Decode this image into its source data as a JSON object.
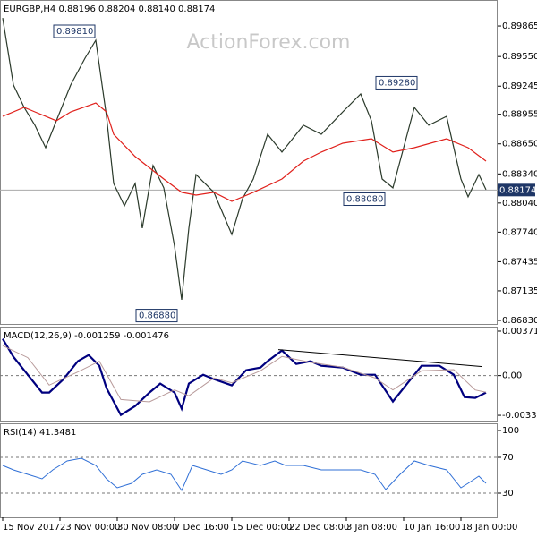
{
  "header": "EURGBP,H4  0.88196 0.88204 0.88140 0.88174",
  "watermark": "ActionForex.com",
  "chart_data": [
    {
      "type": "line",
      "title": "EURGBP,H4  0.88196 0.88204 0.88140 0.88174",
      "xlim": [
        0,
        138
      ],
      "ylim": [
        0.86793,
        0.90133
      ],
      "yticks": [
        0.89865,
        {
          "value": 0.8955,
          "label": "0.89550"
        },
        0.89245,
        0.88955,
        {
          "value": 0.8865,
          "label": "0.88650"
        },
        {
          "value": 0.8834,
          "label": "0.88340"
        },
        {
          "value": 0.8804,
          "label": "0.88040"
        },
        {
          "value": 0.8774,
          "label": "0.87740"
        },
        0.87435,
        0.87135,
        {
          "value": 0.8683,
          "label": "0.86830"
        }
      ],
      "series": [
        {
          "name": "EURGBP",
          "color": "#2b3a2b",
          "x": [
            0,
            3,
            6,
            9,
            12,
            15,
            19,
            23,
            26,
            29,
            31,
            34,
            37,
            39,
            42,
            45,
            48,
            50,
            52,
            54,
            59,
            64,
            67,
            70,
            74,
            78,
            84,
            89,
            95,
            100,
            103,
            106,
            109,
            112,
            115,
            119,
            124,
            128,
            130,
            133,
            135
          ],
          "values": [
            0.89948,
            0.89257,
            0.89026,
            0.88842,
            0.88611,
            0.88888,
            0.89257,
            0.89533,
            0.89718,
            0.88934,
            0.88242,
            0.88011,
            0.88242,
            0.87781,
            0.88426,
            0.88196,
            0.87596,
            0.87043,
            0.87781,
            0.88334,
            0.8815,
            0.87716,
            0.88085,
            0.88288,
            0.88749,
            0.88565,
            0.88842,
            0.88749,
            0.8898,
            0.89164,
            0.88888,
            0.88288,
            0.88196,
            0.88611,
            0.89026,
            0.88842,
            0.88934,
            0.88288,
            0.88104,
            0.88334,
            0.88178
          ]
        },
        {
          "name": "MA",
          "color": "#e0201b",
          "x": [
            0,
            6,
            9,
            15,
            19,
            26,
            29,
            31,
            37,
            45,
            50,
            54,
            59,
            64,
            70,
            78,
            84,
            89,
            95,
            103,
            109,
            115,
            124,
            130,
            135
          ],
          "values": [
            0.88934,
            0.89026,
            0.8898,
            0.88888,
            0.8898,
            0.89072,
            0.8898,
            0.88749,
            0.88519,
            0.88288,
            0.8815,
            0.88122,
            0.8815,
            0.88057,
            0.8815,
            0.88288,
            0.88472,
            0.88565,
            0.88657,
            0.88703,
            0.88565,
            0.88611,
            0.88703,
            0.88611,
            0.88472
          ]
        }
      ],
      "annotations": [
        {
          "value": 0.8981,
          "label": "0.89810",
          "x": 26
        },
        {
          "value": 0.8688,
          "label": "0.86880",
          "x": 49
        },
        {
          "value": 0.8928,
          "label": "0.89280",
          "x": 116
        },
        {
          "value": 0.8808,
          "label": "0.88080",
          "x": 107
        }
      ],
      "last_price": {
        "value": 0.88174,
        "label": "0.88174"
      }
    },
    {
      "type": "line",
      "title": "MACD(12,26,9) -0.001259 -0.001476",
      "xlim": [
        0,
        138
      ],
      "ylim": [
        -0.00377,
        0.00409
      ],
      "yticks": [
        0.003717,
        {
          "value": 0,
          "label": "0.00"
        },
        -0.003325
      ],
      "levels": [
        0
      ],
      "series": [
        {
          "name": "MACD",
          "color": "#00007f",
          "width": 2.2,
          "x": [
            0,
            3,
            7,
            11,
            13,
            17,
            21,
            24,
            27,
            29,
            33,
            37,
            41,
            44,
            48,
            50,
            52,
            56,
            59,
            64,
            68,
            72,
            74,
            78,
            82,
            86,
            89,
            95,
            100,
            104,
            109,
            113,
            117,
            122,
            126,
            129,
            132,
            135
          ],
          "values": [
            0.00307,
            0.00157,
            7e-05,
            -0.00142,
            -0.00142,
            -0.0003,
            0.0012,
            0.00172,
            0.00082,
            -0.00105,
            -0.0033,
            -0.00255,
            -0.00142,
            -0.00067,
            -0.00142,
            -0.00277,
            -0.00067,
            7e-05,
            -0.0003,
            -0.00082,
            0.00045,
            0.00067,
            0.0012,
            0.0021,
            0.00097,
            0.0012,
            0.00082,
            0.00067,
            7e-05,
            7e-05,
            -0.00217,
            -0.00067,
            0.00082,
            0.00082,
            7e-05,
            -0.0018,
            -0.00187,
            -0.00142
          ]
        },
        {
          "name": "Signal",
          "color": "#b89a9a",
          "width": 1,
          "x": [
            0,
            7,
            13,
            21,
            27,
            33,
            41,
            48,
            52,
            59,
            64,
            72,
            78,
            86,
            95,
            104,
            109,
            117,
            126,
            132,
            135
          ],
          "values": [
            0.0025,
            0.0015,
            -0.0008,
            0.0003,
            0.0012,
            -0.002,
            -0.0022,
            -0.0012,
            -0.0017,
            -0.0002,
            -0.0006,
            0.0004,
            0.0016,
            0.0011,
            0.0007,
            -0.0002,
            -0.0012,
            0.0004,
            0.0005,
            -0.0012,
            -0.0014
          ]
        },
        {
          "name": "Trendline",
          "color": "#000000",
          "width": 1,
          "x": [
            77,
            134
          ],
          "values": [
            0.00217,
            0.00075
          ]
        }
      ]
    },
    {
      "type": "line",
      "title": "RSI(14) 41.3481",
      "xlim": [
        0,
        138
      ],
      "ylim": [
        3,
        108
      ],
      "yticks": [
        100,
        70,
        30
      ],
      "levels": [
        70,
        30
      ],
      "xticks": [
        {
          "value": 0,
          "label": "15 Nov 2017"
        },
        {
          "value": 16,
          "label": "23 Nov 00:00"
        },
        {
          "value": 32,
          "label": "30 Nov 08:00"
        },
        {
          "value": 48,
          "label": "7 Dec 16:00"
        },
        {
          "value": 64,
          "label": "15 Dec 00:00"
        },
        {
          "value": 80,
          "label": "22 Dec 08:00"
        },
        {
          "value": 96,
          "label": "3 Jan 08:00"
        },
        {
          "value": 112,
          "label": "10 Jan 16:00"
        },
        {
          "value": 128,
          "label": "18 Jan 00:00"
        }
      ],
      "series": [
        {
          "name": "RSI",
          "color": "#2f6fd6",
          "width": 1,
          "x": [
            0,
            3,
            7,
            11,
            14,
            18,
            22,
            26,
            29,
            32,
            36,
            39,
            43,
            47,
            50,
            53,
            57,
            61,
            64,
            67,
            72,
            76,
            79,
            84,
            89,
            95,
            100,
            104,
            107,
            111,
            115,
            119,
            124,
            128,
            130,
            133,
            135
          ],
          "values": [
            61,
            56,
            51,
            46,
            56,
            66,
            69,
            61,
            46,
            36,
            41,
            51,
            56,
            51,
            33,
            61,
            56,
            51,
            56,
            66,
            61,
            66,
            61,
            61,
            56,
            56,
            56,
            51,
            34,
            51,
            66,
            61,
            56,
            36,
            41,
            49,
            41
          ]
        }
      ]
    }
  ]
}
